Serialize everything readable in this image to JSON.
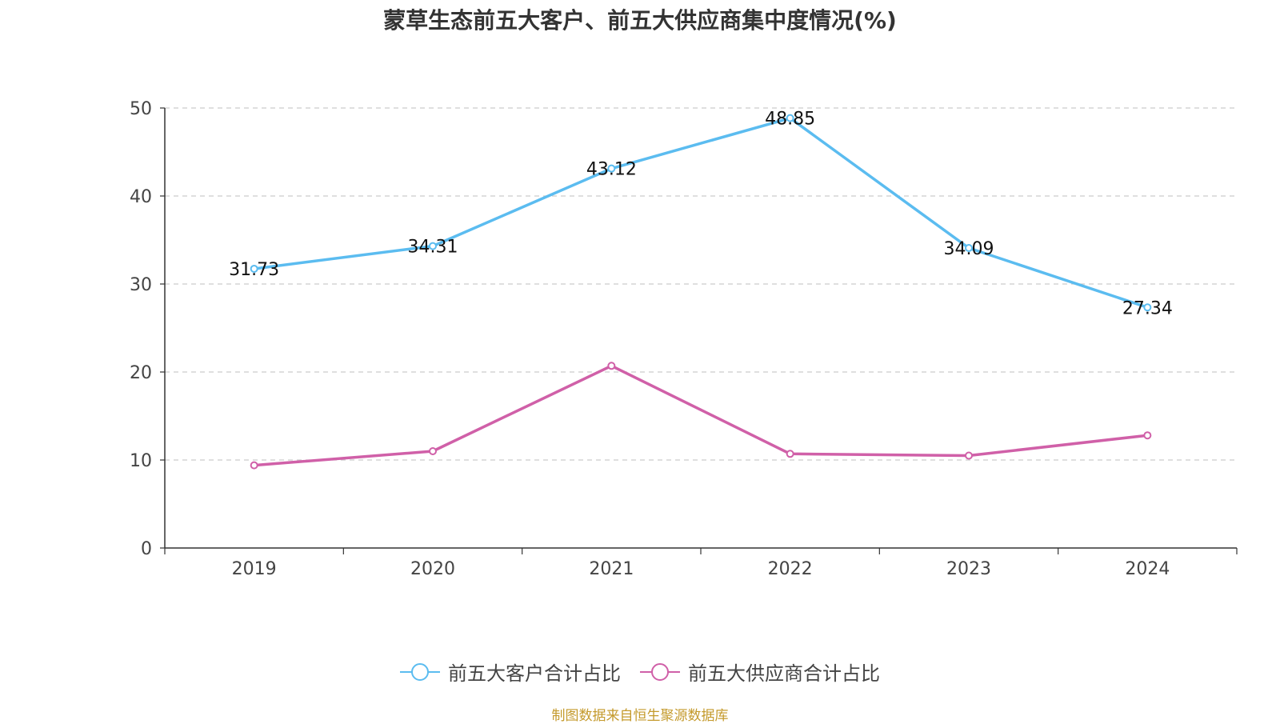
{
  "chart_data": {
    "type": "line",
    "title": "蒙草生态前五大客户、前五大供应商集中度情况(%)",
    "categories": [
      "2019",
      "2020",
      "2021",
      "2022",
      "2023",
      "2024"
    ],
    "series": [
      {
        "name": "前五大客户合计占比",
        "color": "#5bbcf0",
        "values": [
          31.73,
          34.31,
          43.12,
          48.85,
          34.09,
          27.34
        ],
        "show_labels": true
      },
      {
        "name": "前五大供应商合计占比",
        "color": "#d060a8",
        "values": [
          9.4,
          11.0,
          20.7,
          10.7,
          10.5,
          12.8
        ],
        "show_labels": false
      }
    ],
    "ylim": [
      0,
      50
    ],
    "yticks": [
      "0",
      "10",
      "20",
      "30",
      "40",
      "50"
    ],
    "grid": true,
    "legend_position": "bottom-center",
    "xlabel": "",
    "ylabel": ""
  },
  "source_note": "制图数据来自恒生聚源数据库"
}
